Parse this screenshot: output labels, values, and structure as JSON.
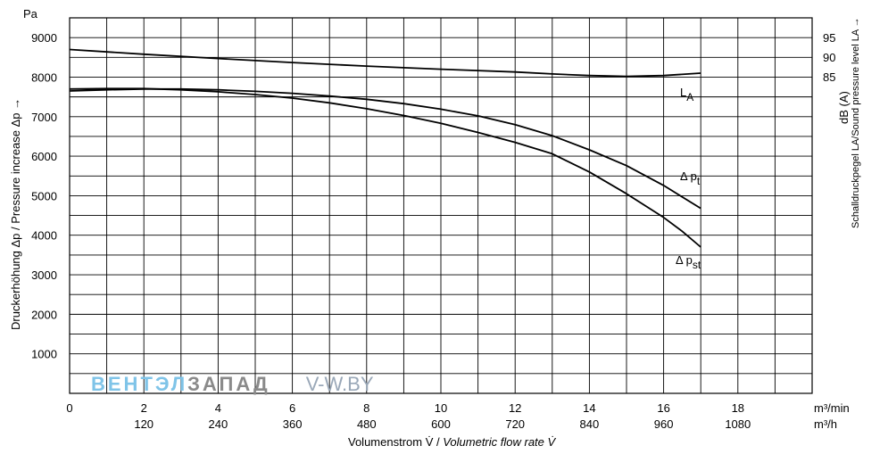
{
  "chart_data": {
    "type": "line",
    "y_unit": "Pa",
    "y_ticks": [
      1000,
      2000,
      3000,
      4000,
      5000,
      6000,
      7000,
      8000,
      9000
    ],
    "ylim": [
      0,
      9500
    ],
    "xlim": [
      0,
      20
    ],
    "x_ticks_m3min": [
      "0",
      "2",
      "4",
      "6",
      "8",
      "10",
      "12",
      "14",
      "16",
      "18"
    ],
    "x_ticks_m3h": [
      "120",
      "240",
      "360",
      "480",
      "600",
      "720",
      "840",
      "960",
      "1080"
    ],
    "x_unit_m3min": "m³/min",
    "x_unit_m3h": "m³/h",
    "xlabel_de": "Volumenstrom V̇ / ",
    "xlabel_en": "Volumetric flow rate V̇",
    "ylabel": "Druckerhöhung Δp / Pressure increase  Δp →",
    "y2_ticks": [
      "95",
      "90",
      "85"
    ],
    "y2_unit": "dB (A)",
    "y2_label": "Schalldruckpegel LA/Sound pressure level LA →",
    "series": [
      {
        "name": "LA",
        "color": "#000000",
        "x": [
          0,
          2,
          4,
          6,
          8,
          10,
          12,
          13,
          14,
          15,
          16,
          17
        ],
        "y": [
          8700,
          8580,
          8470,
          8370,
          8280,
          8200,
          8130,
          8080,
          8040,
          8020,
          8040,
          8100
        ]
      },
      {
        "name": "Δ pt",
        "color": "#000000",
        "x": [
          0,
          1,
          2,
          3,
          4,
          5,
          6,
          7,
          8,
          9,
          10,
          11,
          12,
          13,
          14,
          15,
          16,
          17
        ],
        "y": [
          7650,
          7680,
          7700,
          7700,
          7680,
          7640,
          7590,
          7520,
          7440,
          7330,
          7190,
          7020,
          6800,
          6520,
          6160,
          5760,
          5260,
          4680
        ]
      },
      {
        "name": "Δ pst",
        "color": "#000000",
        "x": [
          0,
          1,
          2,
          3,
          4,
          5,
          6,
          7,
          8,
          9,
          10,
          11,
          12,
          13,
          14,
          15,
          16,
          16.5,
          17
        ],
        "y": [
          7700,
          7710,
          7710,
          7680,
          7630,
          7560,
          7470,
          7350,
          7200,
          7030,
          6830,
          6600,
          6350,
          6060,
          5600,
          5050,
          4450,
          4100,
          3700
        ]
      }
    ],
    "curve_labels": [
      {
        "main": "L",
        "sub": "A"
      },
      {
        "main": "Δ p",
        "sub": "t"
      },
      {
        "main": "Δ p",
        "sub": "st"
      }
    ],
    "grid": true
  },
  "watermark": {
    "part1": "ВЕНТЭЛ",
    "part2": "ЗАПАД",
    "part3": "V-W.BY",
    "color1": "#7fc4e8",
    "color2": "#8a8a8a",
    "color3": "#9aa8b8"
  }
}
